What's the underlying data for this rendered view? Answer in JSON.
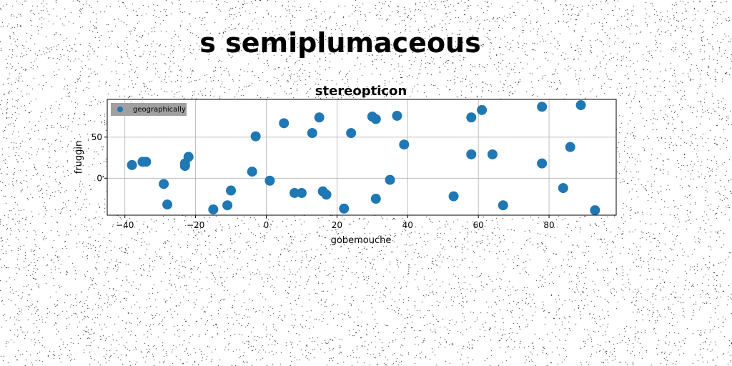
{
  "figure": {
    "suptitle": "s semiplumaceous"
  },
  "chart_data": {
    "type": "scatter",
    "title": "stereopticon",
    "xlabel": "gobemouche",
    "ylabel": "fruggin",
    "xlim": [
      -45,
      99
    ],
    "ylim": [
      -45,
      96
    ],
    "xticks": [
      -40,
      -20,
      0,
      20,
      40,
      60,
      80
    ],
    "yticks": [
      0,
      50
    ],
    "grid": true,
    "legend_position": "top-left",
    "series": [
      {
        "name": "geographically",
        "color": "#1f77b4",
        "points": [
          [
            -38,
            16
          ],
          [
            -35,
            20
          ],
          [
            -34,
            20
          ],
          [
            -29,
            -7
          ],
          [
            -28,
            -32
          ],
          [
            -23,
            15
          ],
          [
            -23,
            18
          ],
          [
            -22,
            26
          ],
          [
            -15,
            -38
          ],
          [
            -11,
            -33
          ],
          [
            -10,
            -15
          ],
          [
            -4,
            8
          ],
          [
            -3,
            51
          ],
          [
            1,
            -3
          ],
          [
            5,
            67
          ],
          [
            8,
            -18
          ],
          [
            10,
            -18
          ],
          [
            13,
            55
          ],
          [
            15,
            74
          ],
          [
            16,
            -16
          ],
          [
            17,
            -20
          ],
          [
            22,
            -37
          ],
          [
            24,
            55
          ],
          [
            30,
            75
          ],
          [
            31,
            72
          ],
          [
            31,
            -25
          ],
          [
            35,
            -2
          ],
          [
            37,
            76
          ],
          [
            39,
            41
          ],
          [
            53,
            -22
          ],
          [
            58,
            74
          ],
          [
            58,
            29
          ],
          [
            61,
            83
          ],
          [
            64,
            29
          ],
          [
            67,
            -33
          ],
          [
            78,
            87
          ],
          [
            78,
            18
          ],
          [
            84,
            -12
          ],
          [
            86,
            38
          ],
          [
            89,
            89
          ],
          [
            93,
            -39
          ]
        ]
      }
    ]
  }
}
